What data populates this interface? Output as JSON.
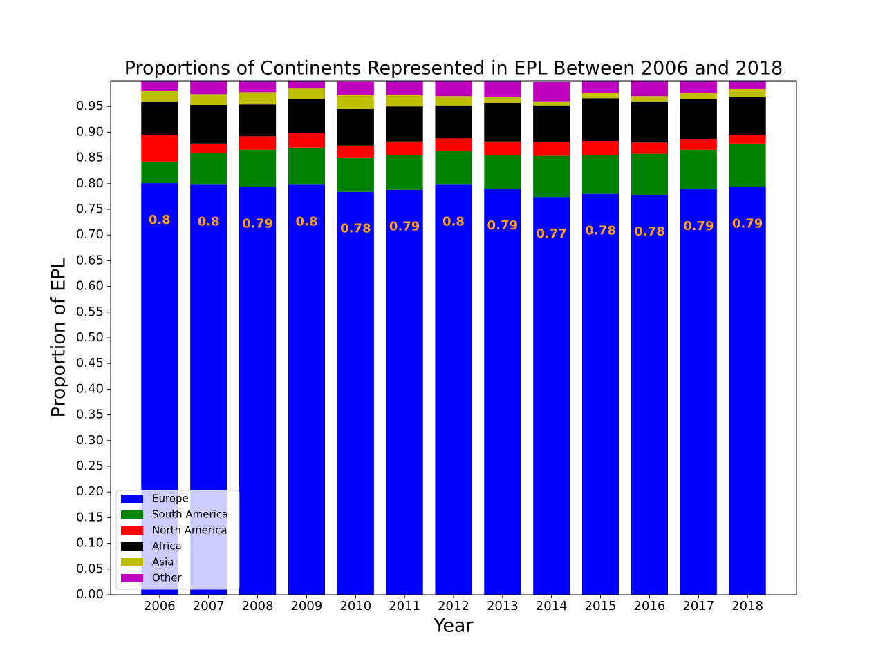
{
  "chart_data": {
    "type": "stacked_bar",
    "title": "Proportions of Continents Represented in EPL Between 2006 and 2018",
    "xlabel": "Year",
    "ylabel": "Proportion of EPL",
    "x": [
      2006,
      2007,
      2008,
      2009,
      2010,
      2011,
      2012,
      2013,
      2014,
      2015,
      2016,
      2017,
      2018
    ],
    "xlim": [
      2005,
      2019
    ],
    "xticks": [
      2006,
      2007,
      2008,
      2009,
      2010,
      2011,
      2012,
      2013,
      2014,
      2015,
      2016,
      2017,
      2018
    ],
    "ylim": [
      0,
      1.0
    ],
    "yticks": [
      {
        "value": 0,
        "label": "0.00"
      },
      0.05,
      {
        "value": 0.1,
        "label": "0.10"
      },
      0.15,
      {
        "value": 0.2,
        "label": "0.20"
      },
      0.25,
      {
        "value": 0.3,
        "label": "0.30"
      },
      0.35,
      {
        "value": 0.4,
        "label": "0.40"
      },
      0.45,
      {
        "value": 0.5,
        "label": "0.50"
      },
      0.55,
      {
        "value": 0.6,
        "label": "0.60"
      },
      0.65,
      {
        "value": 0.7,
        "label": "0.70"
      },
      0.75,
      {
        "value": 0.8,
        "label": "0.80"
      },
      0.85,
      {
        "value": 0.9,
        "label": "0.90"
      },
      0.95
    ],
    "legend": "lower left",
    "grid": false,
    "value_label_color": "#ff9f1a",
    "series": [
      {
        "name": "Europe",
        "color": "#0000ff",
        "values": [
          0.801,
          0.798,
          0.794,
          0.798,
          0.784,
          0.788,
          0.798,
          0.79,
          0.774,
          0.78,
          0.778,
          0.789,
          0.794
        ],
        "value_labels": [
          "0.8",
          "0.8",
          "0.79",
          "0.8",
          "0.78",
          "0.79",
          "0.8",
          "0.79",
          "0.77",
          "0.78",
          "0.78",
          "0.79",
          "0.79"
        ]
      },
      {
        "name": "South America",
        "color": "#008000",
        "values": [
          0.042,
          0.061,
          0.072,
          0.072,
          0.067,
          0.067,
          0.065,
          0.066,
          0.08,
          0.075,
          0.08,
          0.077,
          0.084
        ]
      },
      {
        "name": "North America",
        "color": "#ff0000",
        "values": [
          0.052,
          0.019,
          0.026,
          0.028,
          0.023,
          0.027,
          0.025,
          0.026,
          0.027,
          0.028,
          0.022,
          0.021,
          0.017
        ]
      },
      {
        "name": "Africa",
        "color": "#000000",
        "values": [
          0.065,
          0.075,
          0.062,
          0.066,
          0.071,
          0.068,
          0.064,
          0.075,
          0.071,
          0.083,
          0.08,
          0.077,
          0.073
        ]
      },
      {
        "name": "Asia",
        "color": "#bfbf00",
        "values": [
          0.02,
          0.021,
          0.024,
          0.021,
          0.027,
          0.022,
          0.018,
          0.011,
          0.008,
          0.01,
          0.01,
          0.012,
          0.016
        ]
      },
      {
        "name": "Other",
        "color": "#bf00bf",
        "values": [
          0.02,
          0.026,
          0.022,
          0.015,
          0.027,
          0.028,
          0.03,
          0.032,
          0.038,
          0.024,
          0.03,
          0.024,
          0.016
        ]
      }
    ]
  }
}
